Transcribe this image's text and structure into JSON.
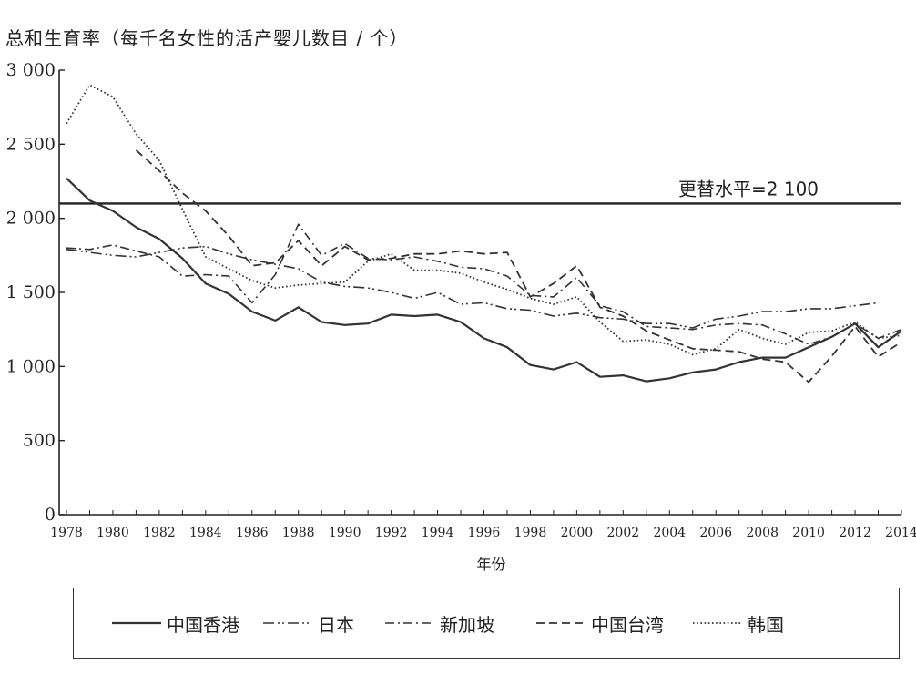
{
  "chart_data": {
    "type": "line",
    "title": "总和生育率（每千名女性的活产婴儿数目  /  个）",
    "xlabel": "年份",
    "ylabel": "",
    "xlim": [
      1978,
      2014
    ],
    "ylim": [
      0,
      3000
    ],
    "y_ticks": [
      0,
      500,
      1000,
      1500,
      2000,
      2500,
      3000
    ],
    "y_tick_labels": [
      "0",
      "500",
      "1 000",
      "1 500",
      "2 000",
      "2 500",
      "3 000"
    ],
    "x_ticks": [
      1978,
      1980,
      1982,
      1984,
      1986,
      1988,
      1990,
      1992,
      1994,
      1996,
      1998,
      2000,
      2002,
      2004,
      2006,
      2008,
      2010,
      2012,
      2014
    ],
    "grid": false,
    "legend_position": "bottom",
    "reference_line": {
      "value": 2100,
      "label": "更替水平=2 100"
    },
    "series": [
      {
        "name": "中国香港",
        "dash": "solid",
        "width": 2.2,
        "x": [
          1978,
          1979,
          1980,
          1981,
          1982,
          1983,
          1984,
          1985,
          1986,
          1987,
          1988,
          1989,
          1990,
          1991,
          1992,
          1993,
          1994,
          1995,
          1996,
          1997,
          1998,
          1999,
          2000,
          2001,
          2002,
          2003,
          2004,
          2005,
          2006,
          2007,
          2008,
          2009,
          2010,
          2011,
          2012,
          2013,
          2014
        ],
        "values": [
          2270,
          2120,
          2050,
          1940,
          1860,
          1730,
          1560,
          1490,
          1370,
          1310,
          1400,
          1300,
          1280,
          1290,
          1350,
          1340,
          1350,
          1300,
          1190,
          1130,
          1010,
          980,
          1030,
          930,
          940,
          900,
          920,
          960,
          980,
          1030,
          1060,
          1060,
          1130,
          1200,
          1290,
          1130,
          1240
        ]
      },
      {
        "name": "日本",
        "dash": "dashdotdot",
        "width": 1.6,
        "x": [
          1978,
          1979,
          1980,
          1981,
          1982,
          1983,
          1984,
          1985,
          1986,
          1987,
          1988,
          1989,
          1990,
          1991,
          1992,
          1993,
          1994,
          1995,
          1996,
          1997,
          1998,
          1999,
          2000,
          2001,
          2002,
          2003,
          2004,
          2005,
          2006,
          2007,
          2008,
          2009,
          2010,
          2011,
          2012,
          2013
        ],
        "values": [
          1790,
          1770,
          1750,
          1740,
          1770,
          1800,
          1810,
          1760,
          1720,
          1690,
          1660,
          1570,
          1540,
          1530,
          1500,
          1460,
          1500,
          1420,
          1430,
          1390,
          1380,
          1340,
          1360,
          1330,
          1320,
          1290,
          1290,
          1260,
          1320,
          1340,
          1370,
          1370,
          1390,
          1390,
          1410,
          1430
        ]
      },
      {
        "name": "新加坡",
        "dash": "dashdot",
        "width": 1.6,
        "x": [
          1978,
          1979,
          1980,
          1981,
          1982,
          1983,
          1984,
          1985,
          1986,
          1987,
          1988,
          1989,
          1990,
          1991,
          1992,
          1993,
          1994,
          1995,
          1996,
          1997,
          1998,
          1999,
          2000,
          2001,
          2002,
          2003,
          2004,
          2005,
          2006,
          2007,
          2008,
          2009,
          2010,
          2011,
          2012,
          2013,
          2014
        ],
        "values": [
          1800,
          1790,
          1820,
          1780,
          1740,
          1610,
          1620,
          1610,
          1430,
          1620,
          1960,
          1750,
          1830,
          1730,
          1720,
          1740,
          1710,
          1670,
          1660,
          1610,
          1480,
          1470,
          1600,
          1410,
          1370,
          1270,
          1260,
          1250,
          1280,
          1290,
          1280,
          1220,
          1150,
          1200,
          1290,
          1190,
          1250
        ]
      },
      {
        "name": "中国台湾",
        "dash": "dashed",
        "width": 1.8,
        "x": [
          1981,
          1982,
          1983,
          1984,
          1985,
          1986,
          1987,
          1988,
          1989,
          1990,
          1991,
          1992,
          1993,
          1994,
          1995,
          1996,
          1997,
          1998,
          1999,
          2000,
          2001,
          2002,
          2003,
          2004,
          2005,
          2006,
          2007,
          2008,
          2009,
          2010,
          2011,
          2012,
          2013,
          2014
        ],
        "values": [
          2460,
          2320,
          2170,
          2050,
          1880,
          1680,
          1700,
          1850,
          1680,
          1810,
          1720,
          1730,
          1760,
          1760,
          1780,
          1760,
          1770,
          1470,
          1560,
          1680,
          1400,
          1340,
          1240,
          1180,
          1120,
          1110,
          1100,
          1050,
          1030,
          895,
          1070,
          1270,
          1065,
          1165
        ]
      },
      {
        "name": "韩国",
        "dash": "dotted",
        "width": 1.8,
        "x": [
          1978,
          1979,
          1980,
          1981,
          1982,
          1983,
          1984,
          1985,
          1986,
          1987,
          1988,
          1989,
          1990,
          1991,
          1992,
          1993,
          1994,
          1995,
          1996,
          1997,
          1998,
          1999,
          2000,
          2001,
          2002,
          2003,
          2004,
          2005,
          2006,
          2007,
          2008,
          2009,
          2010,
          2011,
          2012,
          2013,
          2014
        ],
        "values": [
          2640,
          2900,
          2820,
          2570,
          2390,
          2060,
          1740,
          1660,
          1580,
          1530,
          1550,
          1560,
          1570,
          1710,
          1760,
          1650,
          1650,
          1630,
          1570,
          1520,
          1460,
          1420,
          1470,
          1300,
          1170,
          1180,
          1150,
          1080,
          1120,
          1250,
          1190,
          1150,
          1230,
          1240,
          1300,
          1190,
          1210
        ]
      }
    ]
  },
  "colors": {
    "line": "#333333",
    "axis": "#222222",
    "background": "#ffffff"
  }
}
